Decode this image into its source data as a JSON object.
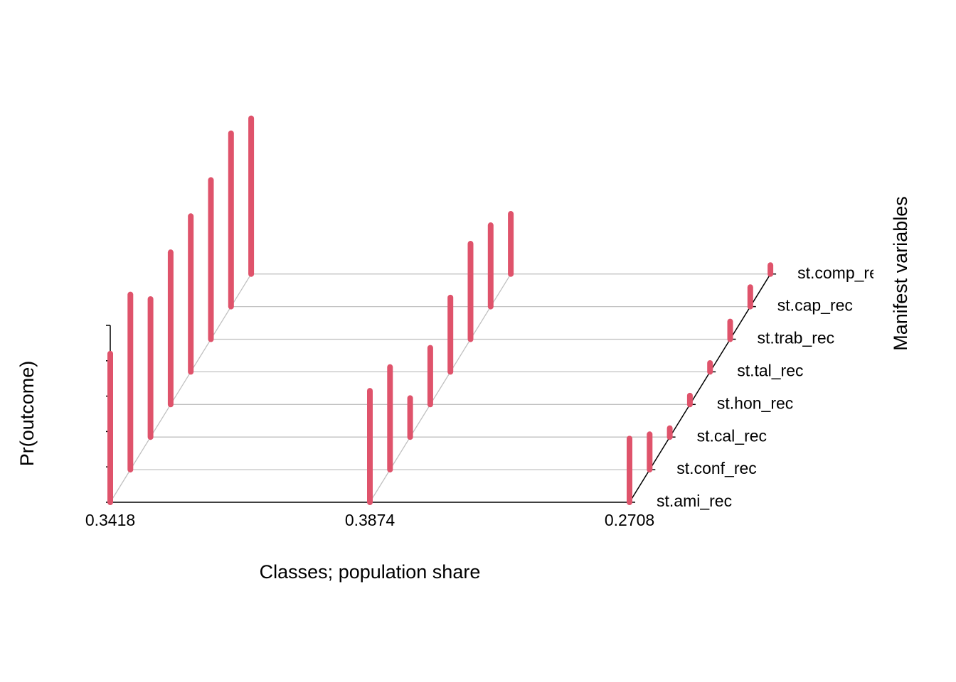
{
  "chart_data": {
    "type": "bar3d",
    "xlabel": "Classes; population share",
    "ylabel": "Manifest variables",
    "zlabel": "Pr(outcome)",
    "categories": [
      "0.3418",
      "0.3874",
      "0.2708"
    ],
    "variables": [
      "st.ami_rec",
      "st.conf_rec",
      "st.cal_rec",
      "st.hon_rec",
      "st.tal_rec",
      "st.trab_rec",
      "st.cap_rec",
      "st.comp_rec"
    ],
    "values": [
      [
        0.84,
        0.99,
        0.78,
        0.86,
        0.88,
        0.9,
        0.98,
        0.88
      ],
      [
        0.63,
        0.58,
        0.22,
        0.32,
        0.42,
        0.54,
        0.46,
        0.34
      ],
      [
        0.36,
        0.2,
        0.05,
        0.05,
        0.05,
        0.1,
        0.11,
        0.05
      ]
    ],
    "color": "#DF536B",
    "zlim": [
      0,
      1
    ],
    "zticks": [
      0,
      0.2,
      0.4,
      0.6,
      0.8,
      1
    ]
  }
}
